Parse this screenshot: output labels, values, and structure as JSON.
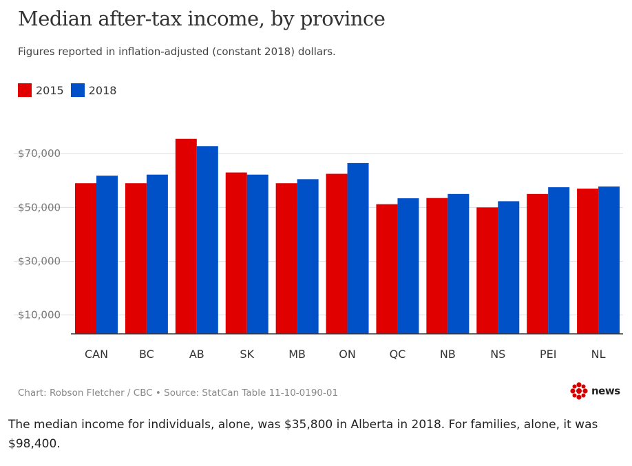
{
  "title": "Median after-tax income, by province",
  "subtitle": "Figures reported in inflation-adjusted (constant 2018) dollars.",
  "footer": "Chart: Robson Fletcher / CBC • Source: StatCan Table 11-10-0190-01",
  "logo_text": "news",
  "caption": "The median income for individuals, alone, was $35,800 in Alberta in 2018. For families, alone, it was $98,400.",
  "colors": {
    "series_2015": "#e00000",
    "series_2018": "#0050c8",
    "grid": "#dddddd",
    "axis": "#333333",
    "tick": "#777777"
  },
  "chart_data": {
    "type": "bar",
    "title": "Median after-tax income, by province",
    "subtitle": "Figures reported in inflation-adjusted (constant 2018) dollars.",
    "categories": [
      "CAN",
      "BC",
      "AB",
      "SK",
      "MB",
      "ON",
      "QC",
      "NB",
      "NS",
      "PEI",
      "NL"
    ],
    "series": [
      {
        "name": "2015",
        "values": [
          59000,
          59000,
          75500,
          63000,
          59000,
          62500,
          51200,
          53500,
          50000,
          55000,
          57000
        ]
      },
      {
        "name": "2018",
        "values": [
          61800,
          62200,
          72800,
          62200,
          60500,
          66500,
          53400,
          55000,
          52300,
          57500,
          57800
        ]
      }
    ],
    "yticks": [
      10000,
      30000,
      50000,
      70000
    ],
    "ytick_labels": [
      "$10,000",
      "$30,000",
      "$50,000",
      "$70,000"
    ],
    "ylim": [
      3000,
      78500
    ],
    "grid": true,
    "legend": "top-left"
  }
}
